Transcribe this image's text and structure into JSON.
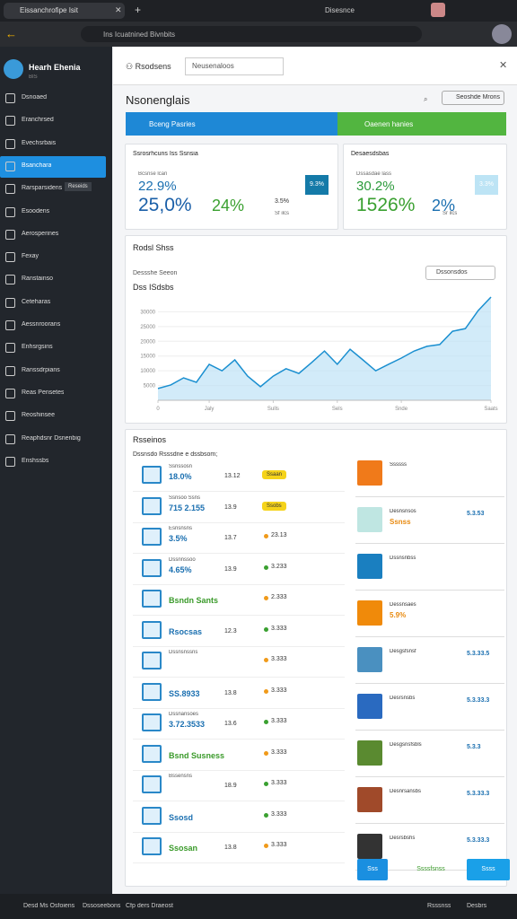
{
  "browser": {
    "tab_title": "Eissanchrofipe Isit",
    "profile": "Disesnce",
    "url": "Ins Icuatnined Bivnbits"
  },
  "sidebar": {
    "brand": "Hearh Ehenia",
    "brand_sub": "BIS",
    "active": 3,
    "badge": "Reseids",
    "items": [
      "Dsnoaed",
      "Eranchrsed",
      "Evechsrbais",
      "Bsanchara",
      "Rarsparsidens",
      "Esoodens",
      "Aerosperines",
      "Fexay",
      "Ranstainso",
      "Ceteharas",
      "Aessnroorans",
      "Enhsrgsins",
      "Ranssdrpians",
      "Reas Pensetes",
      "Reoshinsee",
      "Reaphdsnr Dsnenbig",
      "Enshssbs"
    ]
  },
  "footer": [
    "Desd Ms Osfoiens",
    "Dssoseebons",
    "Cfp ders Draeost",
    "Rsssnss",
    "Desbrs"
  ],
  "header": {
    "user": "Rsodsens",
    "search": "Neusenaloos",
    "title": "Nsonenglais",
    "action": "Seoshde Mrons"
  },
  "tabs": [
    "Bceng Pasries",
    "Oaenen hanies"
  ],
  "cards": [
    {
      "title": "Ssrosrhcuns Iss Ssnsia",
      "small": "Bcsnse lcan",
      "pct": "22.9%",
      "big": "25,0%",
      "big2": "24%",
      "side": "3.5%",
      "sub": "Sf ilcs",
      "badge": "9.3%"
    },
    {
      "title": "Desaesdsbas",
      "small": "Dssasdae lass",
      "pct": "30.2%",
      "big": "1526%",
      "big2": "2%",
      "side": "",
      "sub": "Sr ilcs",
      "badge": "3.3%"
    }
  ],
  "trend_chart": {
    "type": "line",
    "title": "Rodsl Shss",
    "subtitle": "Dessshe Seeon",
    "label": "Dss ISdsbs",
    "search": "Dssonsdos",
    "color": "#1a8fd0",
    "x": [
      0,
      1,
      2,
      3,
      4,
      5,
      6,
      7,
      8,
      9,
      10,
      11,
      12,
      13,
      14,
      15,
      16,
      17,
      18,
      19,
      20,
      21,
      22,
      23,
      24,
      25,
      26
    ],
    "values": [
      4000,
      5200,
      7600,
      6100,
      12200,
      10000,
      13700,
      8200,
      4600,
      8200,
      10700,
      9100,
      12800,
      16700,
      12200,
      17300,
      13700,
      10000,
      12200,
      14300,
      16700,
      18300,
      18900,
      23400,
      24300,
      30400,
      35000
    ],
    "xlim": [
      0,
      26
    ],
    "ylim": [
      0,
      35000
    ],
    "xticks": [
      {
        "value": 0,
        "label": "0"
      },
      {
        "value": 4,
        "label": "Jaly"
      },
      {
        "value": 9,
        "label": "Sulls"
      },
      {
        "value": 14,
        "label": "Sels"
      },
      {
        "value": 19,
        "label": "Snde"
      },
      {
        "value": 26,
        "label": "Saats"
      }
    ],
    "yticks": [
      5000,
      10000,
      15000,
      20000,
      25000,
      30000
    ]
  },
  "list": {
    "title": "Rsseinos",
    "subtitle": "Dssnsdo Rsssdne e dssbsom;",
    "rows": [
      {
        "name": "Ssnssosn",
        "value": "18.0%",
        "score": "13.12",
        "stat": "Ssaan",
        "tone": "blue",
        "kind": "badge"
      },
      {
        "name": "Ssnsoo Ssns",
        "value": "715 2.155",
        "score": "13.9",
        "stat": "Ssobs",
        "tone": "blue",
        "kind": "badge"
      },
      {
        "name": "Esnsnsns",
        "value": "3.5%",
        "score": "13.7",
        "stat": "23.13",
        "tone": "blue",
        "kind": "orange"
      },
      {
        "name": "Dssnnssoo",
        "value": "4.65%",
        "score": "13.9",
        "stat": "3.233",
        "tone": "blue",
        "kind": "green"
      },
      {
        "name": "",
        "value": "Bsndn Sants",
        "score": "",
        "stat": "2.333",
        "tone": "green",
        "kind": "orange"
      },
      {
        "name": "",
        "value": "Rsocsas",
        "score": "12.3",
        "stat": "3.333",
        "tone": "blue",
        "kind": "green"
      },
      {
        "name": "Dssnsnssns",
        "value": "",
        "score": "",
        "stat": "3.333",
        "tone": "blue",
        "kind": "orange"
      },
      {
        "name": "",
        "value": "SS.8933",
        "score": "13.8",
        "stat": "3.333",
        "tone": "blue",
        "kind": "orange"
      },
      {
        "name": "Dssnansoes",
        "value": "3.72.3533",
        "score": "13.6",
        "stat": "3.333",
        "tone": "blue",
        "kind": "green"
      },
      {
        "name": "",
        "value": "Bsnd Susness",
        "score": "",
        "stat": "3.333",
        "tone": "green",
        "kind": "orange"
      },
      {
        "name": "Bssensns",
        "value": "",
        "score": "18.9",
        "stat": "3.333",
        "tone": "blue",
        "kind": "green"
      },
      {
        "name": "",
        "value": "Ssosd",
        "score": "",
        "stat": "3.333",
        "tone": "blue",
        "kind": "green"
      },
      {
        "name": "",
        "value": "Ssosan",
        "score": "13.8",
        "stat": "3.333",
        "tone": "green",
        "kind": "orange"
      }
    ]
  },
  "side_items": [
    {
      "title": "Ssssss",
      "sub": "",
      "value": "",
      "icon": "#f07a1a"
    },
    {
      "title": "Desnsnsos",
      "sub": "Ssnss",
      "value": "5.3.53",
      "icon": "#bfe6e2"
    },
    {
      "title": "Dssnsnbss",
      "sub": "",
      "value": "",
      "icon": "#1a7fc0"
    },
    {
      "title": "Dessnsaes",
      "sub": "5.9%",
      "value": "",
      "icon": "#f08a0a"
    },
    {
      "title": "Desgsfsnsf",
      "sub": "",
      "value": "5.3.33.5",
      "icon": "#4a90c0"
    },
    {
      "title": "Desrsnsbs",
      "sub": "",
      "value": "5.3.33.3",
      "icon": "#2a6ac0"
    },
    {
      "title": "Desgsnsfsbls",
      "sub": "",
      "value": "5.3.3",
      "icon": "#5a8a30"
    },
    {
      "title": "Desnrsansbs",
      "sub": "",
      "value": "5.3.33.3",
      "icon": "#a04a2a"
    },
    {
      "title": "Desrsbshs",
      "sub": "",
      "value": "5.3.33.3",
      "icon": "#333"
    }
  ],
  "bottom_buttons": [
    "Sss",
    "Ssssfsnss",
    "Ssss"
  ]
}
